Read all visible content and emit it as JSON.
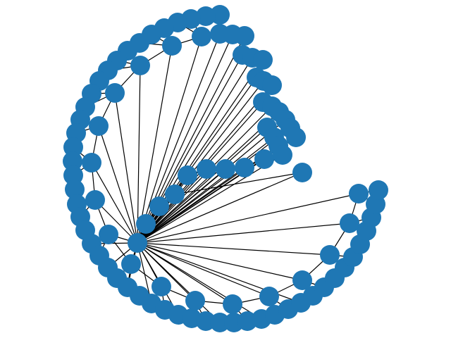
{
  "graph": {
    "node_color": "#1f77b4",
    "edge_color": "#000000",
    "node_count": 92,
    "hub_node": "hub"
  }
}
